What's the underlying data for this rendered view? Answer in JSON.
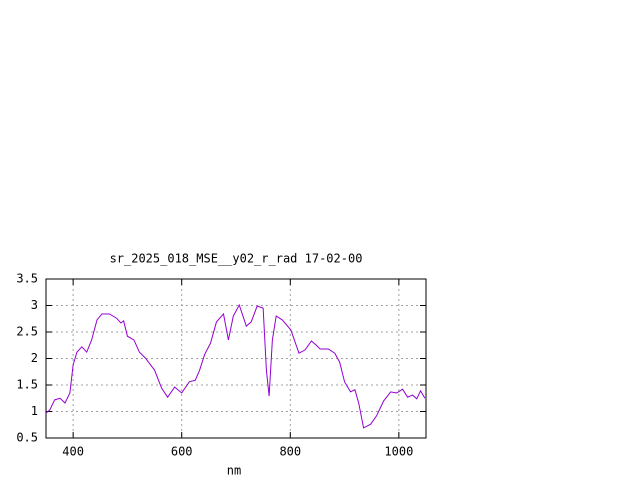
{
  "chart_data": {
    "type": "line",
    "title": "sr_2025_018_MSE__y02_r_rad 17-02-00",
    "x_label": "nm",
    "x": [
      350,
      357,
      366,
      376,
      385,
      394,
      400,
      407,
      416,
      425,
      434,
      444,
      453,
      467,
      480,
      488,
      493,
      500,
      512,
      522,
      533,
      550,
      563,
      574,
      587,
      600,
      614,
      625,
      633,
      642,
      653,
      664,
      677,
      686,
      695,
      706,
      719,
      728,
      739,
      750,
      756,
      761,
      767,
      774,
      785,
      801,
      816,
      827,
      839,
      848,
      855,
      870,
      882,
      891,
      900,
      911,
      919,
      926,
      935,
      948,
      959,
      972,
      985,
      996,
      1007,
      1016,
      1025,
      1033,
      1040,
      1048
    ],
    "series": [
      {
        "color": "#9400d3",
        "values": [
          0.97,
          1.03,
          1.22,
          1.25,
          1.16,
          1.35,
          1.88,
          2.12,
          2.22,
          2.12,
          2.35,
          2.73,
          2.84,
          2.84,
          2.76,
          2.67,
          2.71,
          2.42,
          2.35,
          2.12,
          2.01,
          1.78,
          1.44,
          1.27,
          1.46,
          1.35,
          1.56,
          1.59,
          1.78,
          2.07,
          2.29,
          2.69,
          2.84,
          2.35,
          2.8,
          3.01,
          2.61,
          2.69,
          2.99,
          2.95,
          1.78,
          1.29,
          2.35,
          2.8,
          2.73,
          2.54,
          2.1,
          2.16,
          2.33,
          2.25,
          2.18,
          2.18,
          2.1,
          1.93,
          1.56,
          1.37,
          1.41,
          1.16,
          0.69,
          0.76,
          0.92,
          1.2,
          1.37,
          1.35,
          1.42,
          1.27,
          1.31,
          1.24,
          1.39,
          1.25
        ]
      }
    ],
    "xlim": [
      350,
      1050
    ],
    "xticks": [
      400,
      600,
      800,
      1000
    ],
    "ylim": [
      0.5,
      3.5
    ],
    "yticks": [
      0.5,
      1,
      1.5,
      2,
      2.5,
      3,
      3.5
    ],
    "grid": true
  }
}
